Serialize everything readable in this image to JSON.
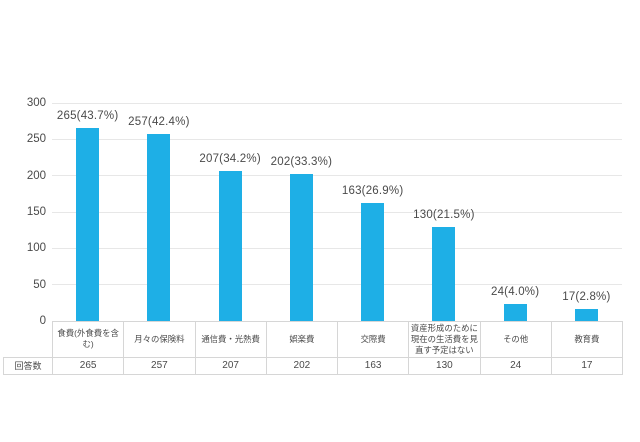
{
  "chart_data": {
    "type": "bar",
    "title": "",
    "xlabel": "",
    "ylabel": "",
    "categories": [
      "食費(外食費を含む)",
      "月々の保険料",
      "通信費・光熱費",
      "娯楽費",
      "交際費",
      "資産形成のために現在の生活費を見直す予定はない",
      "その他",
      "教育費"
    ],
    "values": [
      265,
      257,
      207,
      202,
      163,
      130,
      24,
      17
    ],
    "labels": [
      "265(43.7%)",
      "257(42.4%)",
      "207(34.2%)",
      "202(33.3%)",
      "163(26.9%)",
      "130(21.5%)",
      "24(4.0%)",
      "17(2.8%)"
    ],
    "counts_row": {
      "header": "回答数",
      "values": [
        265,
        257,
        207,
        202,
        163,
        130,
        24,
        17
      ]
    },
    "yticks": [
      0,
      50,
      100,
      150,
      200,
      250,
      300
    ],
    "ylim": [
      0,
      300
    ],
    "grid": true,
    "legend_position": "none",
    "bar_color": "#1eafe6",
    "grid_color": "#e7e7e7",
    "border_color": "#d6d6d6",
    "text_color": "#4a4a4a"
  }
}
